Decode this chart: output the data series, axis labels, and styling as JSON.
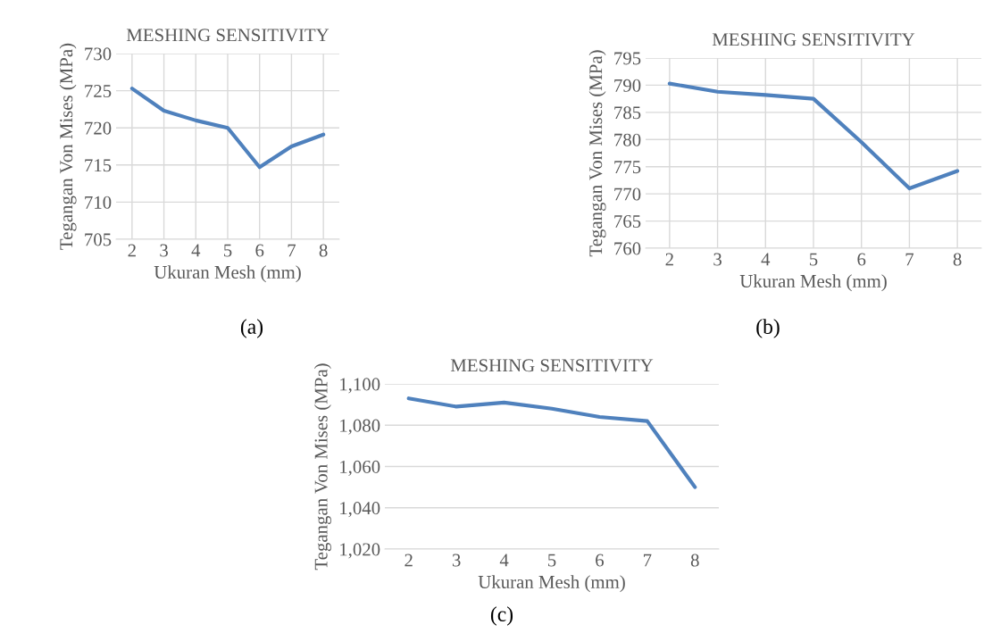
{
  "chart_data": [
    {
      "type": "line",
      "title": "MESHING SENSITIVITY",
      "xlabel": "Ukuran Mesh (mm)",
      "ylabel": "Tegangan Von Mises (MPa)",
      "categories": [
        "2",
        "3",
        "4",
        "5",
        "6",
        "7",
        "8"
      ],
      "series": [
        {
          "color": "#4f81bd",
          "values": [
            725.3,
            722.3,
            721.0,
            720.0,
            714.7,
            717.5,
            719.1
          ]
        }
      ],
      "ylim": [
        705,
        730
      ],
      "yticks": [
        705,
        710,
        715,
        720,
        725,
        730
      ],
      "grid": true,
      "annotations": [
        "(a)"
      ]
    },
    {
      "type": "line",
      "title": "MESHING SENSITIVITY",
      "xlabel": "Ukuran Mesh (mm)",
      "ylabel": "Tegangan Von Mises (MPa)",
      "categories": [
        "2",
        "3",
        "4",
        "5",
        "6",
        "7",
        "8"
      ],
      "series": [
        {
          "color": "#4f81bd",
          "values": [
            790.3,
            788.8,
            788.2,
            787.5,
            779.5,
            771.0,
            774.2
          ]
        }
      ],
      "ylim": [
        760,
        795
      ],
      "yticks": [
        760,
        765,
        770,
        775,
        780,
        785,
        790,
        795
      ],
      "grid": true,
      "annotations": [
        "(b)"
      ]
    },
    {
      "type": "line",
      "title": "MESHING SENSITIVITY",
      "xlabel": "Ukuran Mesh (mm)",
      "ylabel": "Tegangan Von Mises (MPa)",
      "categories": [
        "2",
        "3",
        "4",
        "5",
        "6",
        "7",
        "8"
      ],
      "series": [
        {
          "color": "#4f81bd",
          "values": [
            1093,
            1089,
            1091,
            1088,
            1084,
            1082,
            1050
          ]
        }
      ],
      "ylim": [
        1020,
        1100
      ],
      "yticks": [
        {
          "value": 1020,
          "label": "1,020"
        },
        {
          "value": 1040,
          "label": "1,040"
        },
        {
          "value": 1060,
          "label": "1,060"
        },
        {
          "value": 1080,
          "label": "1,080"
        },
        {
          "value": 1100,
          "label": "1,100"
        }
      ],
      "grid": "y",
      "annotations": [
        "(c)"
      ]
    }
  ]
}
